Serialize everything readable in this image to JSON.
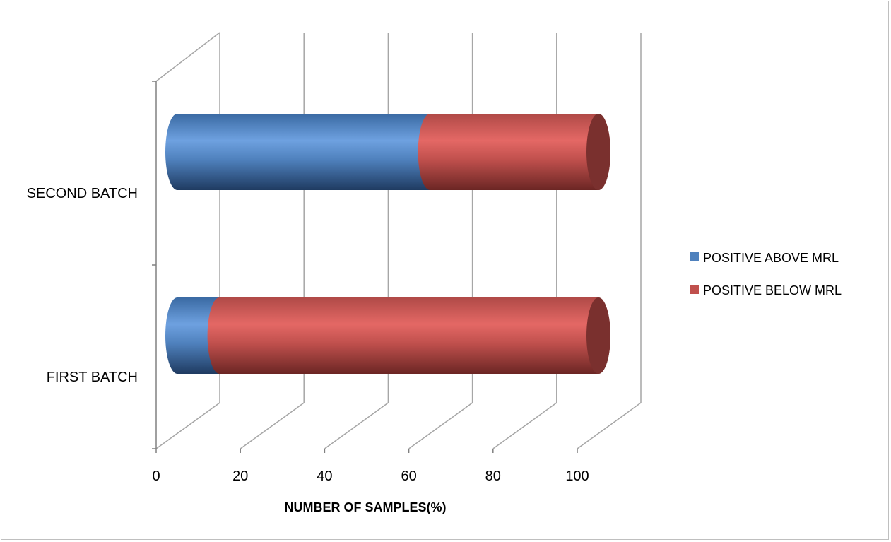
{
  "chart_data": {
    "type": "bar",
    "orientation": "horizontal",
    "stacked": true,
    "style": "3d-cylinder",
    "categories": [
      "FIRST BATCH",
      "SECOND BATCH"
    ],
    "series": [
      {
        "name": "POSITIVE ABOVE MRL",
        "values": [
          10,
          60
        ],
        "color": "#4f81bd"
      },
      {
        "name": "POSITIVE BELOW MRL",
        "values": [
          90,
          40
        ],
        "color": "#c0504d"
      }
    ],
    "title": "",
    "xlabel": "NUMBER OF SAMPLES(%)",
    "ylabel": "",
    "xlim": [
      0,
      100
    ],
    "x_ticks": [
      "0",
      "20",
      "40",
      "60",
      "80",
      "100"
    ],
    "grid": true,
    "legend_position": "right"
  }
}
